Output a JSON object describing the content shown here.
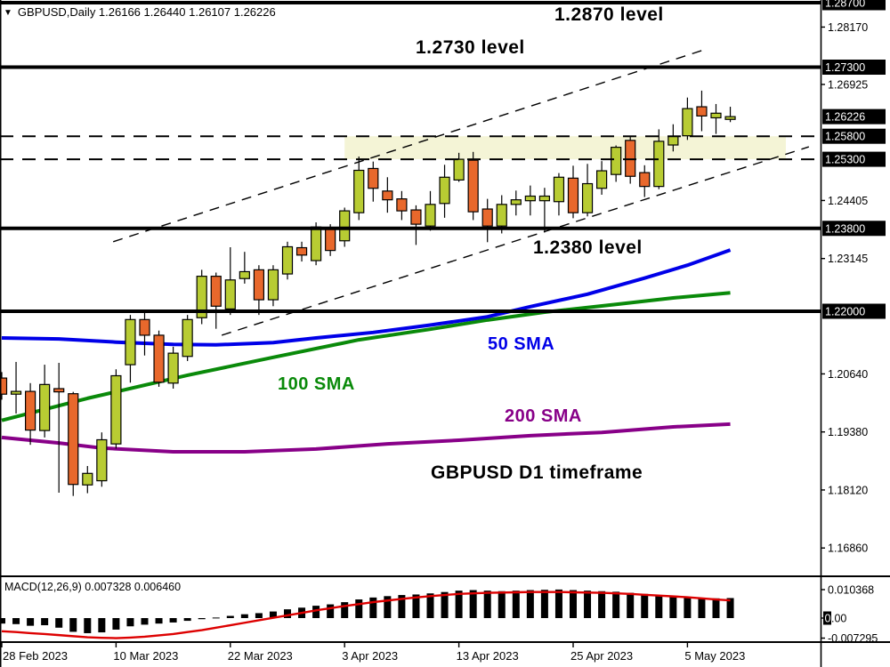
{
  "header": {
    "symbol_line": "GBPUSD,Daily  1.26166 1.26440 1.26107 1.26226"
  },
  "macd_header": "MACD(12,26,9) 0.007328 0.006460",
  "annotations": {
    "level_2870": "1.2870 level",
    "level_2730": "1.2730 level",
    "level_2380": "1.2380 level",
    "sma50": "50 SMA",
    "sma100": "100 SMA",
    "sma200": "200 SMA",
    "timeframe": "GBPUSD D1 timeframe"
  },
  "colors": {
    "bull": "#b8cc33",
    "bear": "#e8682c",
    "outline": "#000000",
    "sma50": "#0000e8",
    "sma100": "#0a8a0a",
    "sma200": "#880088",
    "signal": "#dd0000",
    "zone": "#f4f4d6",
    "histogram": "#000000",
    "axis_box_bg": "#000000",
    "axis_box_text": "#ffffff",
    "axis_text": "#000000"
  },
  "chart_data": {
    "type": "candlestick",
    "symbol": "GBPUSD",
    "timeframe": "Daily",
    "ohlc_current": {
      "open": "1.26166",
      "high": "1.26440",
      "low": "1.26107",
      "close": "1.26226"
    },
    "x_ticks": [
      {
        "label": "28 Feb 2023",
        "index": 0
      },
      {
        "label": "10 Mar 2023",
        "index": 8
      },
      {
        "label": "22 Mar 2023",
        "index": 16
      },
      {
        "label": "3 Apr 2023",
        "index": 24
      },
      {
        "label": "13 Apr 2023",
        "index": 32
      },
      {
        "label": "25 Apr 2023",
        "index": 40
      },
      {
        "label": "5 May 2023",
        "index": 48
      }
    ],
    "price_axis_boxed": [
      {
        "label": "1.28700",
        "price": 1.287
      },
      {
        "label": "1.27300",
        "price": 1.273
      },
      {
        "label": "1.26226",
        "price": 1.26226
      },
      {
        "label": "1.25800",
        "price": 1.258
      },
      {
        "label": "1.25300",
        "price": 1.253
      },
      {
        "label": "1.23800",
        "price": 1.238
      },
      {
        "label": "1.22000",
        "price": 1.22
      }
    ],
    "price_axis_plain": [
      {
        "label": "1.28170",
        "price": 1.2817
      },
      {
        "label": "1.26925",
        "price": 1.26925
      },
      {
        "label": "1.24405",
        "price": 1.24405
      },
      {
        "label": "1.23145",
        "price": 1.23145
      },
      {
        "label": "1.20640",
        "price": 1.2064
      },
      {
        "label": "1.19380",
        "price": 1.1938
      },
      {
        "label": "1.18120",
        "price": 1.1812
      },
      {
        "label": "1.16860",
        "price": 1.1686
      }
    ],
    "levels_solid": [
      1.287,
      1.273,
      1.238,
      1.22
    ],
    "levels_dashed": [
      1.258,
      1.253
    ],
    "zone": {
      "price_from": 1.253,
      "price_to": 1.258,
      "index_from": 24,
      "index_to": 54.9
    },
    "trendlines": [
      {
        "i1": 7.8,
        "p1": 1.2351,
        "i2": 49.4,
        "p2": 1.277
      },
      {
        "i1": 15.4,
        "p1": 1.2148,
        "i2": 56.5,
        "p2": 1.2557
      }
    ],
    "candles": [
      [
        1.2055,
        1.2068,
        1.2008,
        1.202
      ],
      [
        1.202,
        1.209,
        1.1978,
        1.2026
      ],
      [
        1.2026,
        1.2044,
        1.191,
        1.1942
      ],
      [
        1.1941,
        1.2084,
        1.1926,
        1.2041
      ],
      [
        1.2032,
        1.2088,
        1.1806,
        1.2025
      ],
      [
        1.2021,
        1.2025,
        1.1799,
        1.1824
      ],
      [
        1.1823,
        1.1864,
        1.1805,
        1.1848
      ],
      [
        1.1832,
        1.1937,
        1.1819,
        1.1921
      ],
      [
        1.1912,
        1.2074,
        1.1902,
        1.206
      ],
      [
        1.2084,
        1.2192,
        1.2045,
        1.2182
      ],
      [
        1.2182,
        1.2198,
        1.2104,
        1.2148
      ],
      [
        1.2148,
        1.2158,
        1.2036,
        1.2046
      ],
      [
        1.2044,
        1.2123,
        1.2032,
        1.2109
      ],
      [
        1.2102,
        1.2192,
        1.2092,
        1.2182
      ],
      [
        1.2186,
        1.229,
        1.2172,
        1.2276
      ],
      [
        1.2276,
        1.2284,
        1.2162,
        1.2211
      ],
      [
        1.2205,
        1.2339,
        1.2192,
        1.2268
      ],
      [
        1.2271,
        1.2329,
        1.226,
        1.2286
      ],
      [
        1.229,
        1.23,
        1.2192,
        1.2225
      ],
      [
        1.2225,
        1.23,
        1.2211,
        1.229
      ],
      [
        1.2281,
        1.2351,
        1.2269,
        1.234
      ],
      [
        1.2338,
        1.2351,
        1.2308,
        1.2322
      ],
      [
        1.231,
        1.2393,
        1.23,
        1.2383
      ],
      [
        1.2379,
        1.2389,
        1.232,
        1.2332
      ],
      [
        1.2353,
        1.2425,
        1.234,
        1.2418
      ],
      [
        1.2414,
        1.2536,
        1.2398,
        1.2506
      ],
      [
        1.251,
        1.2525,
        1.2438,
        1.2467
      ],
      [
        1.2461,
        1.2491,
        1.2414,
        1.2442
      ],
      [
        1.2444,
        1.2461,
        1.2398,
        1.2418
      ],
      [
        1.242,
        1.243,
        1.2344,
        1.2389
      ],
      [
        1.2385,
        1.2461,
        1.2375,
        1.2432
      ],
      [
        1.2434,
        1.2518,
        1.2403,
        1.2491
      ],
      [
        1.2485,
        1.2544,
        1.2481,
        1.253
      ],
      [
        1.2528,
        1.2546,
        1.2398,
        1.2416
      ],
      [
        1.2422,
        1.2444,
        1.235,
        1.2385
      ],
      [
        1.2385,
        1.2452,
        1.2369,
        1.2432
      ],
      [
        1.2432,
        1.2462,
        1.2408,
        1.2442
      ],
      [
        1.244,
        1.2473,
        1.2408,
        1.245
      ],
      [
        1.244,
        1.2468,
        1.2371,
        1.245
      ],
      [
        1.2438,
        1.25,
        1.2408,
        1.2491
      ],
      [
        1.2489,
        1.2516,
        1.2402,
        1.2414
      ],
      [
        1.2414,
        1.252,
        1.2406,
        1.2477
      ],
      [
        1.2467,
        1.2526,
        1.2453,
        1.2505
      ],
      [
        1.2497,
        1.256,
        1.2481,
        1.2556
      ],
      [
        1.2571,
        1.258,
        1.2477,
        1.2493
      ],
      [
        1.2501,
        1.2517,
        1.2448,
        1.2471
      ],
      [
        1.2471,
        1.2595,
        1.2465,
        1.2569
      ],
      [
        1.2561,
        1.2606,
        1.2547,
        1.258
      ],
      [
        1.2581,
        1.2664,
        1.2572,
        1.264
      ],
      [
        1.2644,
        1.2679,
        1.2591,
        1.2624
      ],
      [
        1.262,
        1.265,
        1.2585,
        1.263
      ],
      [
        1.26166,
        1.2644,
        1.26107,
        1.26226
      ]
    ],
    "sma50_points": [
      [
        0,
        1.2142
      ],
      [
        4,
        1.214
      ],
      [
        8,
        1.2133
      ],
      [
        12,
        1.2128
      ],
      [
        15,
        1.2127
      ],
      [
        19,
        1.2132
      ],
      [
        22,
        1.2142
      ],
      [
        26,
        1.2154
      ],
      [
        30,
        1.217
      ],
      [
        34,
        1.2188
      ],
      [
        37,
        1.221
      ],
      [
        41,
        1.2237
      ],
      [
        45,
        1.2272
      ],
      [
        48,
        1.23
      ],
      [
        51,
        1.2333
      ]
    ],
    "sma100_points": [
      [
        0,
        1.1963
      ],
      [
        6,
        1.2011
      ],
      [
        13,
        1.2061
      ],
      [
        19,
        1.21
      ],
      [
        25,
        1.2138
      ],
      [
        30,
        1.2161
      ],
      [
        34,
        1.2181
      ],
      [
        38,
        1.2198
      ],
      [
        43,
        1.2215
      ],
      [
        47,
        1.2229
      ],
      [
        51,
        1.224
      ]
    ],
    "sma200_points": [
      [
        0,
        1.1926
      ],
      [
        4,
        1.1914
      ],
      [
        7,
        1.1903
      ],
      [
        12,
        1.1895
      ],
      [
        17,
        1.1895
      ],
      [
        22,
        1.1901
      ],
      [
        27,
        1.1912
      ],
      [
        32,
        1.192
      ],
      [
        37,
        1.193
      ],
      [
        42,
        1.1937
      ],
      [
        47,
        1.1949
      ],
      [
        51,
        1.1955
      ]
    ],
    "macd": {
      "params": "12,26,9",
      "macd_value": 0.007328,
      "signal_value": 0.00646,
      "axis": [
        {
          "label": "0.010368",
          "value": 0.010368,
          "boxed_zero": false
        },
        {
          "label": "0.00",
          "value": 0,
          "boxed_zero": true
        },
        {
          "label": "-0.007295",
          "value": -0.007295,
          "boxed_zero": false
        }
      ],
      "histogram": [
        -0.002,
        -0.0022,
        -0.0028,
        -0.0026,
        -0.0035,
        -0.005,
        -0.0055,
        -0.0052,
        -0.0042,
        -0.003,
        -0.0024,
        -0.002,
        -0.0016,
        -0.001,
        -0.0004,
        0.0002,
        0.0008,
        0.0014,
        0.0018,
        0.0024,
        0.0032,
        0.0038,
        0.0045,
        0.005,
        0.0058,
        0.0068,
        0.0075,
        0.008,
        0.0084,
        0.0086,
        0.009,
        0.0095,
        0.01,
        0.0102,
        0.01,
        0.0098,
        0.01,
        0.0102,
        0.0103,
        0.0104,
        0.0102,
        0.01,
        0.0098,
        0.0096,
        0.0092,
        0.0088,
        0.0084,
        0.008,
        0.0076,
        0.0074,
        0.0072,
        0.0073
      ],
      "signal": [
        -0.0048,
        -0.0051,
        -0.0055,
        -0.0058,
        -0.0062,
        -0.0066,
        -0.007,
        -0.0072,
        -0.0073,
        -0.0071,
        -0.0068,
        -0.0063,
        -0.0058,
        -0.0051,
        -0.0044,
        -0.0035,
        -0.0026,
        -0.0017,
        -0.0008,
        0.0001,
        0.001,
        0.0019,
        0.0028,
        0.0036,
        0.0044,
        0.0051,
        0.0058,
        0.0064,
        0.007,
        0.0075,
        0.008,
        0.0084,
        0.0088,
        0.009,
        0.0092,
        0.0093,
        0.0094,
        0.0095,
        0.0095,
        0.0095,
        0.0094,
        0.0093,
        0.0092,
        0.009,
        0.0088,
        0.0085,
        0.0082,
        0.0079,
        0.0076,
        0.0072,
        0.0068,
        0.00646
      ]
    }
  }
}
